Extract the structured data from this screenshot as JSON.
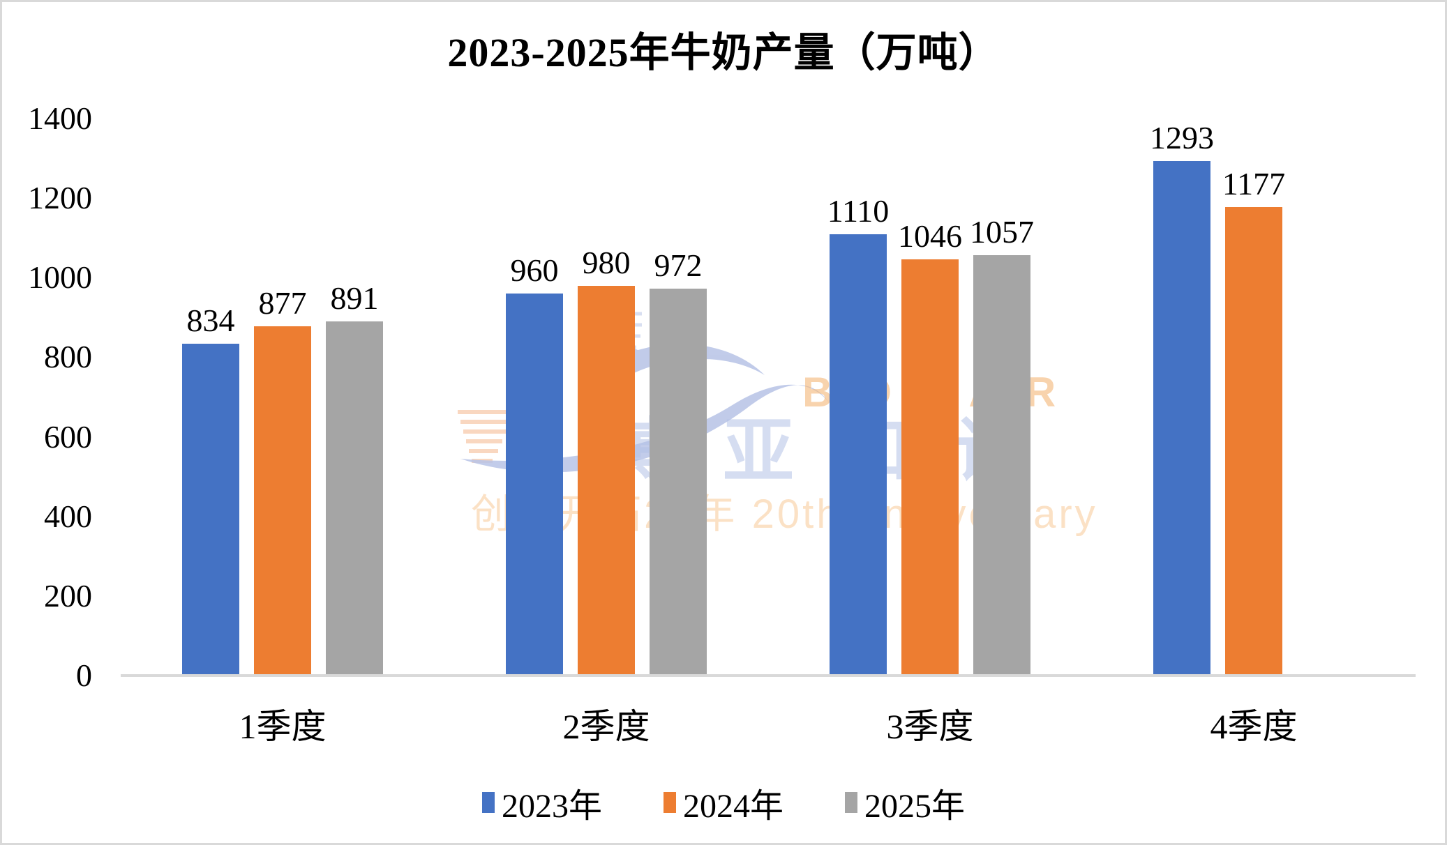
{
  "chart_data": {
    "type": "bar",
    "title": "2023-2025年牛奶产量（万吨）",
    "categories": [
      "1季度",
      "2季度",
      "3季度",
      "4季度"
    ],
    "series": [
      {
        "name": "2023年",
        "color": "#4472C4",
        "values": [
          834,
          960,
          1110,
          1293
        ]
      },
      {
        "name": "2024年",
        "color": "#ED7D31",
        "values": [
          877,
          980,
          1046,
          1177
        ]
      },
      {
        "name": "2025年",
        "color": "#A5A5A5",
        "values": [
          891,
          972,
          1057,
          null
        ]
      }
    ],
    "ylim": [
      0,
      1400
    ],
    "yticks": [
      0,
      200,
      400,
      600,
      800,
      1000,
      1200,
      1400
    ],
    "grid": false,
    "legend_position": "bottom",
    "data_labels": true,
    "axis_line_color": "#D9D9D9",
    "text_color": "#000000",
    "background": "#FFFFFF",
    "frame_border_color": "#D9D9D9"
  },
  "watermark": {
    "line_en": "BOYAR",
    "line_cn": "博亚和讯",
    "line_anniversary": "创业开拓20年 20th Anniversary",
    "bird_color": "#B7C3E6",
    "eye_color": "#EFE492",
    "stripe_color": "#F4B183"
  }
}
